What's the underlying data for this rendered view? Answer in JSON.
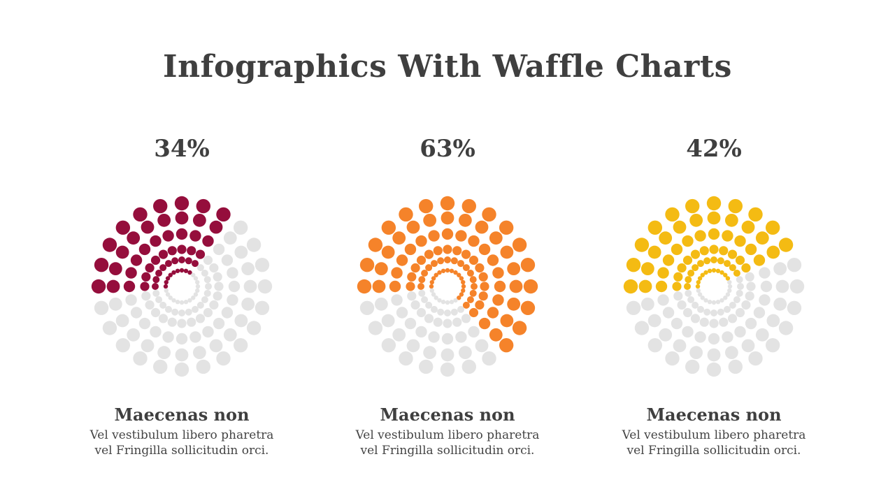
{
  "title": "Infographics With Waffle Charts",
  "inactive_color": "#e3e3e3",
  "chart_data": [
    {
      "type": "waffle",
      "value_label": "34%",
      "percent": 34,
      "color": "#950e3c",
      "heading": "Maecenas non",
      "description": "Vel vestibulum libero pharetra vel Fringilla sollicitudin orci."
    },
    {
      "type": "waffle",
      "value_label": "63%",
      "percent": 63,
      "color": "#f5832a",
      "heading": "Maecenas non",
      "description": "Vel vestibulum libero pharetra vel Fringilla sollicitudin orci."
    },
    {
      "type": "waffle",
      "value_label": "42%",
      "percent": 42,
      "color": "#f4bb13",
      "heading": "Maecenas non",
      "description": "Vel vestibulum libero pharetra vel Fringilla sollicitudin orci."
    }
  ]
}
